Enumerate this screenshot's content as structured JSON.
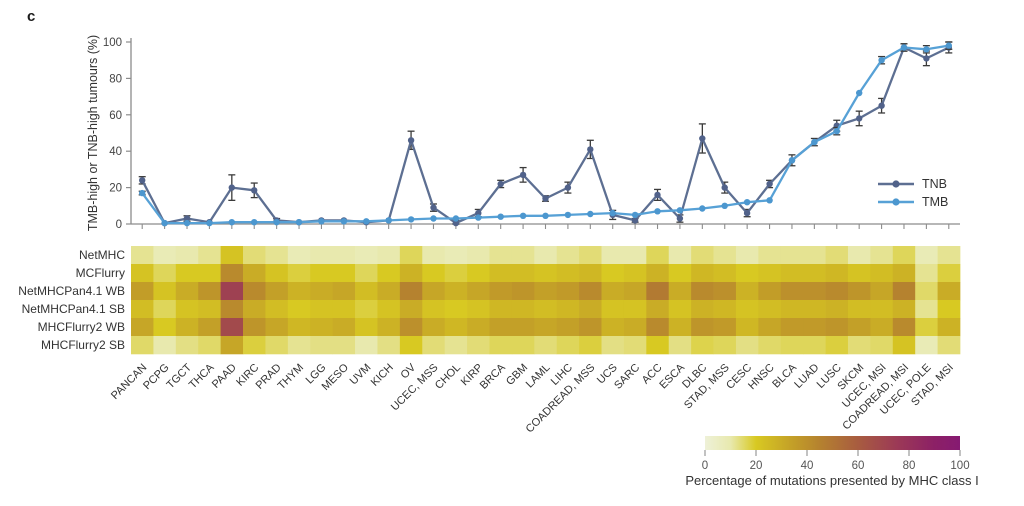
{
  "panel_label": "c",
  "chart_data": [
    {
      "type": "line",
      "title": "",
      "xlabel": "",
      "ylabel": "TMB-high or TNB-high tumours (%)",
      "ylim": [
        0,
        100
      ],
      "yticks": [
        0,
        20,
        40,
        60,
        80,
        100
      ],
      "grid": false,
      "legend_position": "inside-right",
      "categories": [
        "PANCAN",
        "PCPG",
        "TGCT",
        "THCA",
        "PAAD",
        "KIRC",
        "PRAD",
        "THYM",
        "LGG",
        "MESO",
        "UVM",
        "KICH",
        "OV",
        "UCEC, MSS",
        "CHOL",
        "KIRP",
        "BRCA",
        "GBM",
        "LAML",
        "LIHC",
        "COADREAD, MSS",
        "UCS",
        "SARC",
        "ACC",
        "ESCA",
        "DLBC",
        "STAD, MSS",
        "CESC",
        "HNSC",
        "BLCA",
        "LUAD",
        "LUSC",
        "SKCM",
        "UCEC, MSI",
        "COADREAD, MSI",
        "UCEC, POLE",
        "STAD, MSI"
      ],
      "series": [
        {
          "name": "TNB",
          "color": "#5d6f92",
          "marker_color": "#51628a",
          "values": [
            24,
            0.5,
            3,
            1,
            20,
            18.5,
            2,
            1,
            2,
            2,
            1,
            2,
            46,
            9,
            0.5,
            6,
            22,
            27,
            14,
            20,
            41,
            5,
            2,
            16,
            3,
            47,
            20,
            6,
            22,
            35,
            45,
            54,
            58,
            65,
            97,
            91,
            97
          ],
          "errors": [
            2,
            0.5,
            1.5,
            0.5,
            7,
            4,
            1,
            0.5,
            0.5,
            0.5,
            0.5,
            0.5,
            5,
            2,
            1.5,
            2,
            2,
            4,
            1.5,
            3,
            5,
            2.5,
            1,
            3,
            2,
            8,
            3,
            2,
            2,
            3,
            2,
            3,
            4,
            4,
            2,
            4,
            3
          ]
        },
        {
          "name": "TMB",
          "color": "#57a1d6",
          "marker_color": "#4c97cf",
          "values": [
            17,
            0.5,
            0.5,
            0.5,
            1,
            1,
            1,
            1,
            1.5,
            1.5,
            1.5,
            2,
            2.5,
            3,
            3,
            3.5,
            4,
            4.5,
            4.5,
            5,
            5.5,
            6,
            5,
            7,
            7.5,
            8.5,
            10,
            12,
            13,
            35,
            45,
            51,
            72,
            90,
            97,
            96,
            98
          ],
          "errors": [
            1,
            0,
            0,
            0,
            0,
            0,
            0,
            0,
            0,
            0,
            0,
            0,
            0,
            0,
            0,
            0,
            0,
            0,
            0,
            0,
            0,
            0,
            0,
            0,
            0,
            0,
            0,
            0,
            0,
            0,
            0,
            2,
            0,
            2,
            2,
            2,
            2
          ]
        }
      ],
      "error_bar_color": "#3b3b3b",
      "axis_color": "#8c8c8c"
    },
    {
      "type": "heatmap",
      "rows": [
        "NetMHC",
        "MCFlurry",
        "NetMHCPan4.1 WB",
        "NetMHCPan4.1 SB",
        "MHCFlurry2 WB",
        "MHCFlurry2 SB"
      ],
      "columns": [
        "PANCAN",
        "PCPG",
        "TGCT",
        "THCA",
        "PAAD",
        "KIRC",
        "PRAD",
        "THYM",
        "LGG",
        "MESO",
        "UVM",
        "KICH",
        "OV",
        "UCEC, MSS",
        "CHOL",
        "KIRP",
        "BRCA",
        "GBM",
        "LAML",
        "LIHC",
        "COADREAD, MSS",
        "UCS",
        "SARC",
        "ACC",
        "ESCA",
        "DLBC",
        "STAD, MSS",
        "CESC",
        "HNSC",
        "BLCA",
        "LUAD",
        "LUSC",
        "SKCM",
        "UCEC, MSI",
        "COADREAD, MSI",
        "UCEC, POLE",
        "STAD, MSI"
      ],
      "values": [
        [
          12,
          8,
          10,
          12,
          22,
          14,
          12,
          8,
          10,
          10,
          8,
          10,
          16,
          10,
          8,
          10,
          12,
          12,
          10,
          12,
          14,
          10,
          10,
          16,
          10,
          14,
          12,
          10,
          12,
          12,
          12,
          14,
          10,
          12,
          16,
          8,
          12
        ],
        [
          22,
          16,
          20,
          20,
          42,
          30,
          22,
          18,
          20,
          20,
          16,
          20,
          28,
          20,
          18,
          20,
          24,
          24,
          22,
          24,
          26,
          20,
          22,
          28,
          20,
          26,
          24,
          20,
          22,
          24,
          24,
          26,
          22,
          24,
          28,
          12,
          18
        ],
        [
          35,
          22,
          30,
          38,
          72,
          42,
          34,
          28,
          30,
          32,
          24,
          30,
          45,
          32,
          28,
          32,
          36,
          38,
          34,
          36,
          42,
          30,
          32,
          48,
          30,
          42,
          40,
          28,
          35,
          40,
          40,
          42,
          38,
          32,
          45,
          15,
          30
        ],
        [
          24,
          16,
          22,
          24,
          42,
          30,
          24,
          20,
          22,
          22,
          18,
          22,
          30,
          22,
          20,
          22,
          26,
          26,
          24,
          26,
          30,
          22,
          22,
          30,
          22,
          28,
          26,
          22,
          24,
          26,
          26,
          28,
          24,
          24,
          28,
          12,
          20
        ],
        [
          32,
          20,
          28,
          34,
          68,
          38,
          32,
          26,
          28,
          30,
          22,
          28,
          40,
          30,
          26,
          30,
          34,
          34,
          32,
          34,
          38,
          28,
          30,
          42,
          28,
          38,
          36,
          26,
          32,
          36,
          36,
          38,
          34,
          30,
          42,
          18,
          28
        ],
        [
          15,
          10,
          13,
          15,
          32,
          18,
          15,
          12,
          13,
          13,
          10,
          13,
          20,
          14,
          12,
          14,
          16,
          16,
          14,
          16,
          18,
          13,
          14,
          20,
          13,
          17,
          16,
          13,
          15,
          16,
          16,
          18,
          14,
          15,
          22,
          8,
          14
        ]
      ],
      "colorbar": {
        "label": "Percentage of mutations presented by MHC class I",
        "ticks": [
          0,
          20,
          40,
          60,
          80,
          100
        ],
        "range": [
          0,
          100
        ],
        "gradient": [
          {
            "at": 0,
            "color": "#eef1d8"
          },
          {
            "at": 10,
            "color": "#e8e9ae"
          },
          {
            "at": 20,
            "color": "#d8c922"
          },
          {
            "at": 35,
            "color": "#c29d28"
          },
          {
            "at": 45,
            "color": "#b5822f"
          },
          {
            "at": 60,
            "color": "#a85c40"
          },
          {
            "at": 75,
            "color": "#9c3a56"
          },
          {
            "at": 90,
            "color": "#8c2066"
          },
          {
            "at": 100,
            "color": "#861a72"
          }
        ]
      }
    }
  ]
}
